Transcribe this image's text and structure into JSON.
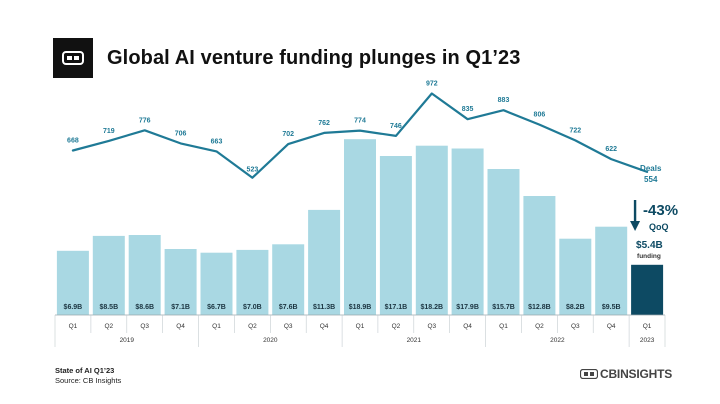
{
  "header": {
    "title": "Global AI venture funding plunges in Q1’23"
  },
  "chart_data": {
    "type": "bar",
    "title": "Global AI venture funding plunges in Q1’23",
    "quarter_labels": [
      "Q1",
      "Q2",
      "Q3",
      "Q4",
      "Q1",
      "Q2",
      "Q3",
      "Q4",
      "Q1",
      "Q2",
      "Q3",
      "Q4",
      "Q1",
      "Q2",
      "Q3",
      "Q4",
      "Q1"
    ],
    "year_groups": [
      {
        "label": "2019",
        "count": 4
      },
      {
        "label": "2020",
        "count": 4
      },
      {
        "label": "2021",
        "count": 4
      },
      {
        "label": "2022",
        "count": 4
      },
      {
        "label": "2023",
        "count": 1
      }
    ],
    "series": [
      {
        "name": "funding",
        "type": "bar",
        "values": [
          6.9,
          8.5,
          8.6,
          7.1,
          6.7,
          7.0,
          7.6,
          11.3,
          18.9,
          17.1,
          18.2,
          17.9,
          15.7,
          12.8,
          8.2,
          9.5,
          5.4
        ],
        "labels": [
          "$6.9B",
          "$8.5B",
          "$8.6B",
          "$7.1B",
          "$6.7B",
          "$7.0B",
          "$7.6B",
          "$11.3B",
          "$18.9B",
          "$17.1B",
          "$18.2B",
          "$17.9B",
          "$15.7B",
          "$12.8B",
          "$8.2B",
          "$9.5B",
          ""
        ]
      },
      {
        "name": "Deals",
        "type": "line",
        "values": [
          668,
          719,
          776,
          706,
          663,
          523,
          702,
          762,
          774,
          746,
          972,
          835,
          883,
          806,
          722,
          622,
          554
        ],
        "labels": [
          "668",
          "719",
          "776",
          "706",
          "663",
          "523",
          "702",
          "762",
          "774",
          "746",
          "972",
          "835",
          "883",
          "806",
          "722",
          "622",
          ""
        ]
      }
    ],
    "colors": {
      "bar": "#a9d8e3",
      "bar_highlight": "#0d4a63",
      "line": "#1f7a96",
      "deal_label": "#1f7a96",
      "arrow": "#0d4a63"
    },
    "callout": {
      "deals_label": "Deals",
      "deals_value": "554",
      "change": "-43%",
      "change_unit": "QoQ",
      "funding_value": "$5.4B",
      "funding_label": "funding"
    },
    "grid": false
  },
  "footer": {
    "report": "State of AI Q1’23",
    "source": "Source: CB Insights",
    "brand": "CBINSIGHTS"
  }
}
